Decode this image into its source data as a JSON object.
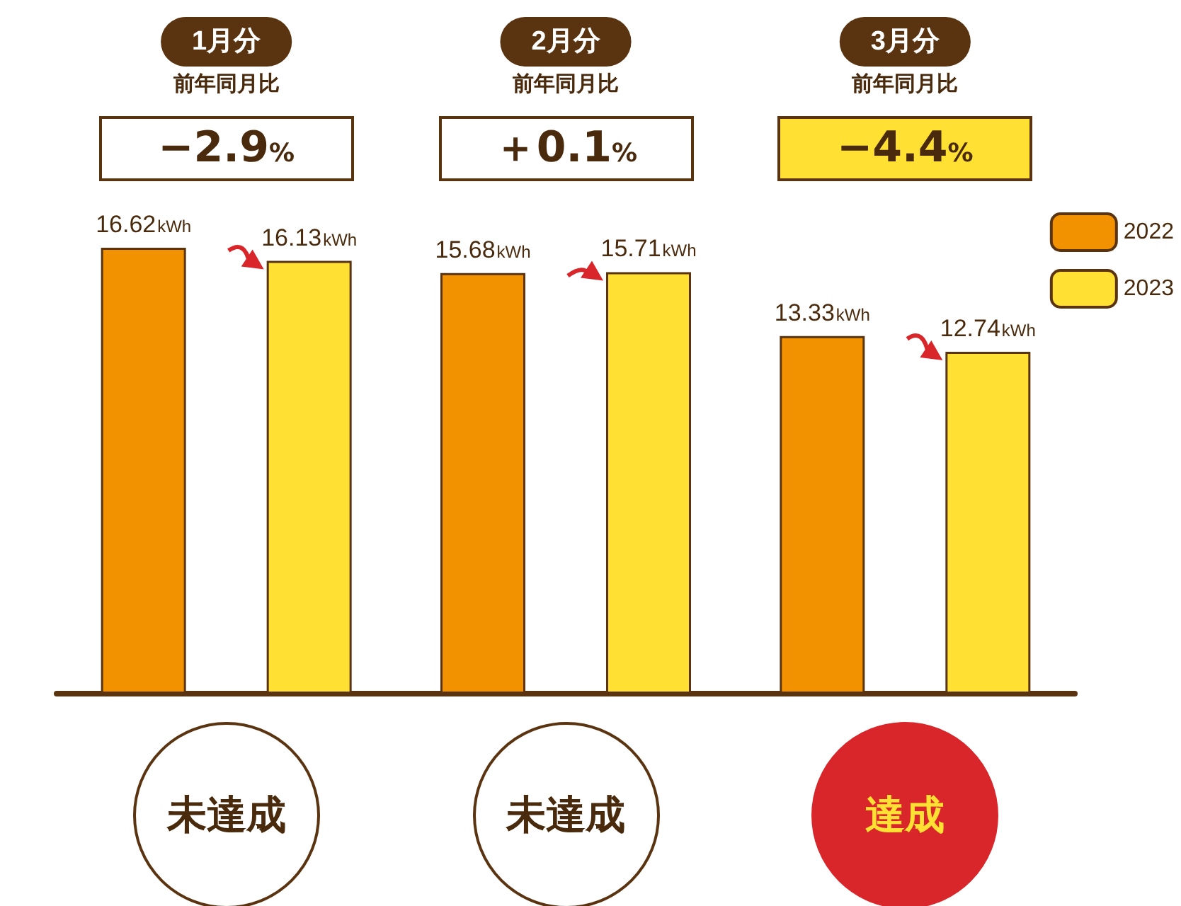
{
  "chart_data": {
    "type": "bar",
    "categories": [
      "1月分",
      "2月分",
      "3月分"
    ],
    "series": [
      {
        "name": "2022",
        "color": "#f39200",
        "values": [
          16.62,
          15.68,
          13.33
        ],
        "value_labels": [
          "16.62kWh",
          "15.68kWh",
          "13.33kWh"
        ]
      },
      {
        "name": "2023",
        "color": "#ffe033",
        "values": [
          16.13,
          15.71,
          12.74
        ],
        "value_labels": [
          "16.13kWh",
          "15.71kWh",
          "12.74kWh"
        ]
      }
    ],
    "annotations": [
      "前年同月比",
      "−2.9%",
      "未達成",
      "前年同月比",
      "＋0.1%",
      "未達成",
      "前年同月比",
      "−4.4%",
      "達成"
    ],
    "legend": "top right",
    "grid": false
  }
}
